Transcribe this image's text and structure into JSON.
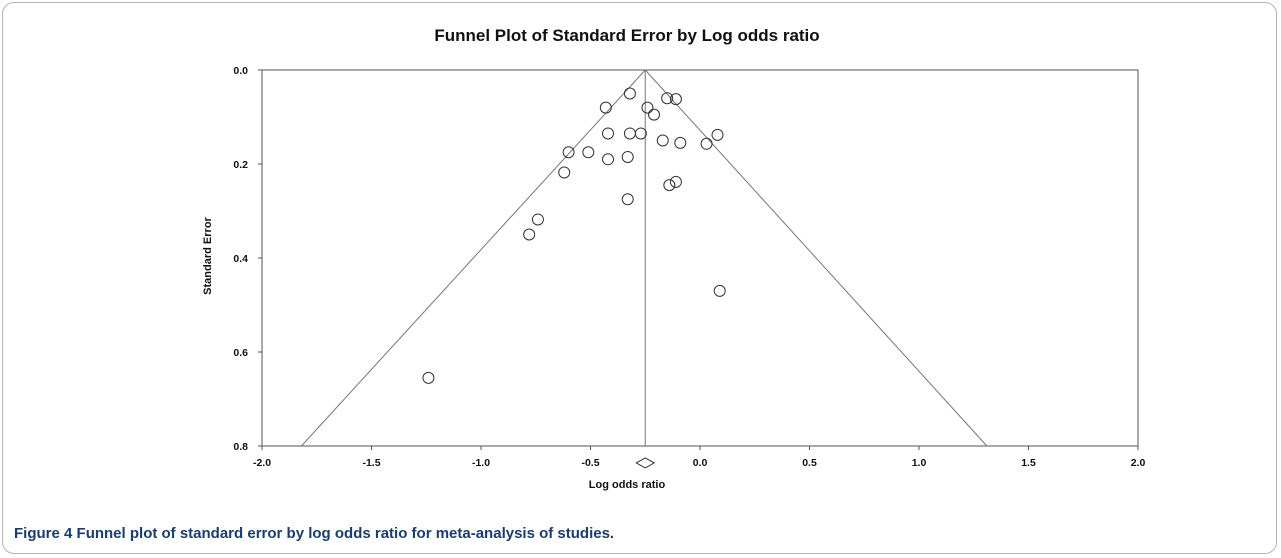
{
  "figure": {
    "caption_label": "Figure 4",
    "caption_text": "Funnel plot of standard error by log odds ratio for meta-analysis of studies."
  },
  "chart_data": {
    "type": "scatter",
    "title": "Funnel Plot of Standard Error by Log odds ratio",
    "xlabel": "Log odds ratio",
    "ylabel": "Standard Error",
    "xlim": [
      -2.0,
      2.0
    ],
    "ylim": [
      0.0,
      0.8
    ],
    "y_inverted": true,
    "xticks": [
      "-2.0",
      "-1.5",
      "-1.0",
      "-0.5",
      "0.0",
      "0.5",
      "1.0",
      "1.5",
      "2.0"
    ],
    "yticks": [
      "0.0",
      "0.2",
      "0.4",
      "0.6",
      "0.8"
    ],
    "grid": false,
    "pooled_estimate": -0.25,
    "funnel_bottom_x": [
      -1.82,
      1.31
    ],
    "summary_diamond": {
      "center": -0.25,
      "se": 0.836
    },
    "points": [
      {
        "x": -0.32,
        "y": 0.05
      },
      {
        "x": -0.43,
        "y": 0.08
      },
      {
        "x": -0.24,
        "y": 0.08
      },
      {
        "x": -0.21,
        "y": 0.095
      },
      {
        "x": -0.15,
        "y": 0.06
      },
      {
        "x": -0.11,
        "y": 0.062
      },
      {
        "x": -0.42,
        "y": 0.135
      },
      {
        "x": -0.32,
        "y": 0.135
      },
      {
        "x": -0.27,
        "y": 0.135
      },
      {
        "x": -0.17,
        "y": 0.15
      },
      {
        "x": -0.09,
        "y": 0.155
      },
      {
        "x": 0.03,
        "y": 0.157
      },
      {
        "x": 0.08,
        "y": 0.138
      },
      {
        "x": -0.6,
        "y": 0.175
      },
      {
        "x": -0.51,
        "y": 0.175
      },
      {
        "x": -0.42,
        "y": 0.19
      },
      {
        "x": -0.33,
        "y": 0.185
      },
      {
        "x": -0.62,
        "y": 0.218
      },
      {
        "x": -0.14,
        "y": 0.245
      },
      {
        "x": -0.11,
        "y": 0.238
      },
      {
        "x": -0.33,
        "y": 0.275
      },
      {
        "x": -0.74,
        "y": 0.318
      },
      {
        "x": -0.78,
        "y": 0.35
      },
      {
        "x": 0.09,
        "y": 0.47
      },
      {
        "x": -1.24,
        "y": 0.655
      }
    ]
  }
}
